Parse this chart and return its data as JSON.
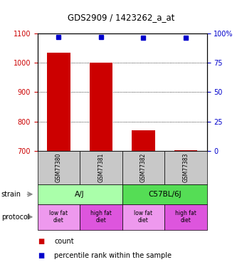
{
  "title": "GDS2909 / 1423262_a_at",
  "samples": [
    "GSM77380",
    "GSM77381",
    "GSM77382",
    "GSM77383"
  ],
  "counts": [
    1035,
    1000,
    770,
    703
  ],
  "percentile_ranks": [
    97,
    97,
    96,
    96
  ],
  "ylim_left": [
    700,
    1100
  ],
  "ylim_right": [
    0,
    100
  ],
  "yticks_left": [
    700,
    800,
    900,
    1000,
    1100
  ],
  "yticks_right": [
    0,
    25,
    50,
    75,
    100
  ],
  "bar_color": "#cc0000",
  "dot_color": "#0000cc",
  "bar_width": 0.55,
  "strain_labels": [
    [
      "A/J",
      0,
      2
    ],
    [
      "C57BL/6J",
      2,
      4
    ]
  ],
  "protocol_labels": [
    "low fat\ndiet",
    "high fat\ndiet",
    "low fat\ndiet",
    "high fat\ndiet"
  ],
  "aj_color": "#aaffaa",
  "c57_color": "#55dd55",
  "proto_low_color": "#ee99ee",
  "proto_high_color": "#dd55dd",
  "gsm_color": "#c8c8c8",
  "legend_count_color": "#cc0000",
  "legend_pct_color": "#0000cc"
}
